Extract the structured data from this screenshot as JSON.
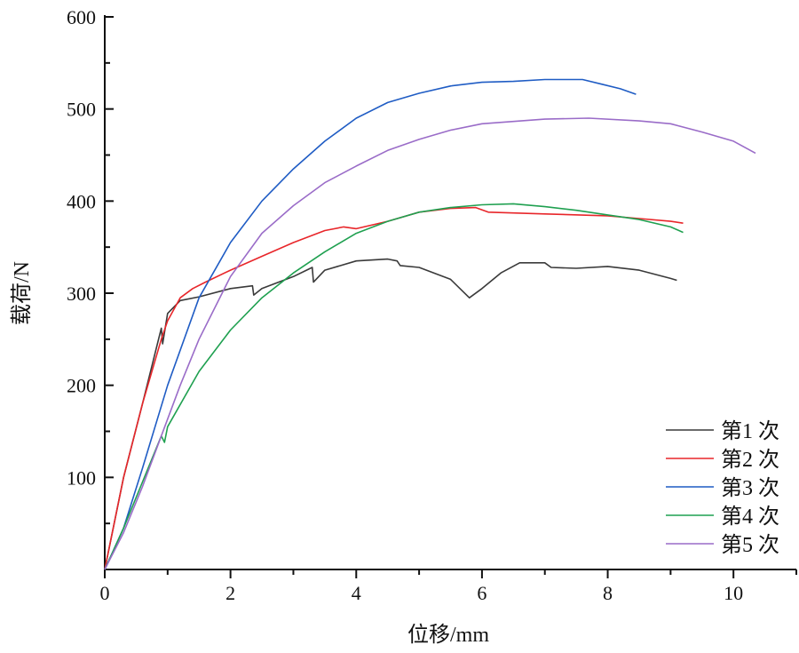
{
  "chart_data": {
    "type": "line",
    "title": "",
    "xlabel": "位移/mm",
    "ylabel": "载荷/N",
    "xlim": [
      0,
      11
    ],
    "ylim": [
      0,
      600
    ],
    "xticks": [
      0,
      2,
      4,
      6,
      8,
      10
    ],
    "xtick_labels": [
      "0",
      "2",
      "4",
      "6",
      "8",
      "10"
    ],
    "yticks": [
      100,
      200,
      300,
      400,
      500,
      600
    ],
    "ytick_labels": [
      "100",
      "200",
      "300",
      "400",
      "500",
      "600"
    ],
    "grid": false,
    "legend_position": "bottom-right",
    "series": [
      {
        "name": "第1 次",
        "color": "#3a3a3a",
        "x": [
          0,
          0.3,
          0.6,
          0.9,
          0.92,
          1.0,
          1.2,
          1.5,
          2.0,
          2.35,
          2.37,
          2.5,
          3.0,
          3.3,
          3.32,
          3.5,
          4.0,
          4.5,
          4.65,
          4.7,
          5.0,
          5.5,
          5.8,
          6.0,
          6.3,
          6.6,
          7.0,
          7.1,
          7.5,
          8.0,
          8.5,
          9.0,
          9.1
        ],
        "y": [
          0,
          100,
          180,
          262,
          245,
          278,
          292,
          296,
          305,
          308,
          298,
          305,
          318,
          328,
          312,
          325,
          335,
          337,
          335,
          330,
          328,
          315,
          295,
          305,
          322,
          333,
          333,
          328,
          327,
          329,
          325,
          316,
          314
        ]
      },
      {
        "name": "第2 次",
        "color": "#e8262a",
        "x": [
          0,
          0.3,
          0.6,
          0.9,
          1.0,
          1.2,
          1.4,
          1.6,
          2.0,
          2.5,
          3.0,
          3.5,
          3.8,
          4.0,
          4.5,
          5.0,
          5.5,
          5.9,
          6.1,
          7.0,
          8.0,
          8.5,
          9.0,
          9.2
        ],
        "y": [
          0,
          100,
          180,
          250,
          270,
          295,
          305,
          312,
          325,
          340,
          355,
          368,
          372,
          370,
          378,
          388,
          392,
          393,
          388,
          386,
          384,
          381,
          378,
          376
        ]
      },
      {
        "name": "第3 次",
        "color": "#1f5cc4",
        "x": [
          0,
          0.3,
          0.6,
          1.0,
          1.5,
          2.0,
          2.5,
          3.0,
          3.5,
          4.0,
          4.5,
          5.0,
          5.5,
          6.0,
          6.5,
          7.0,
          7.6,
          7.9,
          8.2,
          8.45
        ],
        "y": [
          0,
          45,
          110,
          200,
          295,
          355,
          400,
          435,
          465,
          490,
          507,
          517,
          525,
          529,
          530,
          532,
          532,
          527,
          522,
          516
        ]
      },
      {
        "name": "第4 次",
        "color": "#1fa050",
        "x": [
          0,
          0.3,
          0.6,
          0.9,
          0.95,
          1.0,
          1.5,
          2.0,
          2.5,
          3.0,
          3.5,
          4.0,
          4.5,
          5.0,
          5.5,
          6.0,
          6.5,
          7.0,
          7.5,
          8.0,
          8.5,
          9.0,
          9.2
        ],
        "y": [
          0,
          45,
          95,
          145,
          138,
          155,
          215,
          260,
          295,
          322,
          345,
          365,
          378,
          388,
          393,
          396,
          397,
          394,
          390,
          385,
          380,
          372,
          366
        ]
      },
      {
        "name": "第5 次",
        "color": "#9a6cc8",
        "x": [
          0,
          0.3,
          0.6,
          0.9,
          1.2,
          1.5,
          2.0,
          2.5,
          3.0,
          3.5,
          4.0,
          4.5,
          5.0,
          5.5,
          6.0,
          7.0,
          7.7,
          8.5,
          9.0,
          9.5,
          10.0,
          10.35
        ],
        "y": [
          0,
          40,
          90,
          145,
          200,
          250,
          318,
          365,
          395,
          420,
          438,
          455,
          467,
          477,
          484,
          489,
          490,
          487,
          484,
          475,
          465,
          452
        ]
      }
    ]
  }
}
